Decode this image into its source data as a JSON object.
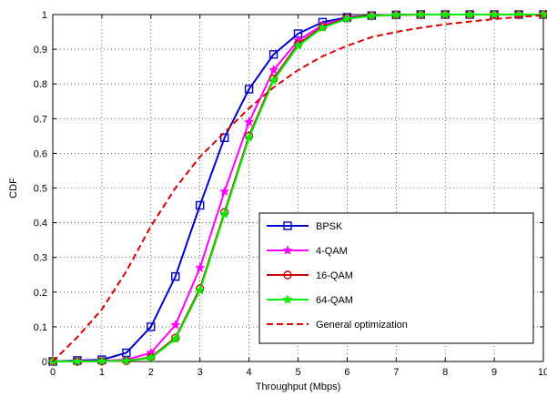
{
  "chart_data": {
    "type": "line",
    "title": "",
    "xlabel": "Throughput (Mbps)",
    "ylabel": "CDF",
    "xlim": [
      0,
      10
    ],
    "ylim": [
      0,
      1
    ],
    "xticks": [
      "0",
      "1",
      "2",
      "3",
      "4",
      "5",
      "6",
      "7",
      "8",
      "9",
      "10"
    ],
    "yticks": [
      "0",
      "0.1",
      "0.2",
      "0.3",
      "0.4",
      "0.5",
      "0.6",
      "0.7",
      "0.8",
      "0.9",
      "1"
    ],
    "grid": true,
    "legend_position": "bottom-right",
    "series": [
      {
        "name": "BPSK",
        "color": "#0000cc",
        "line_style": "solid",
        "marker": "square",
        "x": [
          0,
          0.5,
          1,
          1.5,
          2,
          2.5,
          3,
          3.5,
          4,
          4.5,
          5,
          5.5,
          6,
          6.5,
          7,
          7.5,
          8,
          8.5,
          9,
          9.5,
          10
        ],
        "y": [
          0,
          0.003,
          0.005,
          0.025,
          0.1,
          0.245,
          0.45,
          0.645,
          0.785,
          0.885,
          0.945,
          0.978,
          0.992,
          0.997,
          0.999,
          1,
          1,
          1,
          1,
          1,
          1
        ]
      },
      {
        "name": "4-QAM",
        "color": "#ff00ff",
        "line_style": "solid",
        "marker": "star",
        "x": [
          0,
          0.5,
          1,
          1.5,
          2,
          2.5,
          3,
          3.5,
          4,
          4.5,
          5,
          5.5,
          6,
          6.5,
          7,
          7.5,
          8,
          8.5,
          9,
          9.5,
          10
        ],
        "y": [
          0,
          0.001,
          0.002,
          0.005,
          0.025,
          0.105,
          0.27,
          0.49,
          0.69,
          0.84,
          0.925,
          0.97,
          0.99,
          0.997,
          0.999,
          1,
          1,
          1,
          1,
          1,
          1
        ]
      },
      {
        "name": "16-QAM",
        "color": "#cc0000",
        "line_style": "solid",
        "marker": "circle",
        "x": [
          0,
          0.5,
          1,
          1.5,
          2,
          2.5,
          3,
          3.5,
          4,
          4.5,
          5,
          5.5,
          6,
          6.5,
          7,
          7.5,
          8,
          8.5,
          9,
          9.5,
          10
        ],
        "y": [
          0,
          0,
          0.001,
          0.002,
          0.012,
          0.068,
          0.21,
          0.43,
          0.65,
          0.815,
          0.915,
          0.965,
          0.99,
          0.997,
          0.999,
          1,
          1,
          1,
          1,
          1,
          1
        ]
      },
      {
        "name": "64-QAM",
        "color": "#00ee00",
        "line_style": "solid",
        "marker": "star",
        "x": [
          0,
          0.5,
          1,
          1.5,
          2,
          2.5,
          3,
          3.5,
          4,
          4.5,
          5,
          5.5,
          6,
          6.5,
          7,
          7.5,
          8,
          8.5,
          9,
          9.5,
          10
        ],
        "y": [
          0,
          0,
          0.001,
          0.002,
          0.01,
          0.065,
          0.205,
          0.425,
          0.645,
          0.81,
          0.91,
          0.962,
          0.988,
          0.996,
          0.999,
          1,
          1,
          1,
          1,
          1,
          1
        ]
      },
      {
        "name": "General optimization",
        "color": "#dd0000",
        "line_style": "dashed",
        "marker": "none",
        "x": [
          0,
          0.5,
          1,
          1.5,
          2,
          2.5,
          3,
          3.5,
          4,
          4.5,
          5,
          5.5,
          6,
          6.5,
          7,
          7.5,
          8,
          8.5,
          9,
          9.5,
          10
        ],
        "y": [
          0,
          0.07,
          0.15,
          0.26,
          0.39,
          0.5,
          0.59,
          0.66,
          0.73,
          0.79,
          0.84,
          0.88,
          0.91,
          0.935,
          0.95,
          0.962,
          0.972,
          0.98,
          0.987,
          0.993,
          0.998
        ]
      }
    ]
  }
}
